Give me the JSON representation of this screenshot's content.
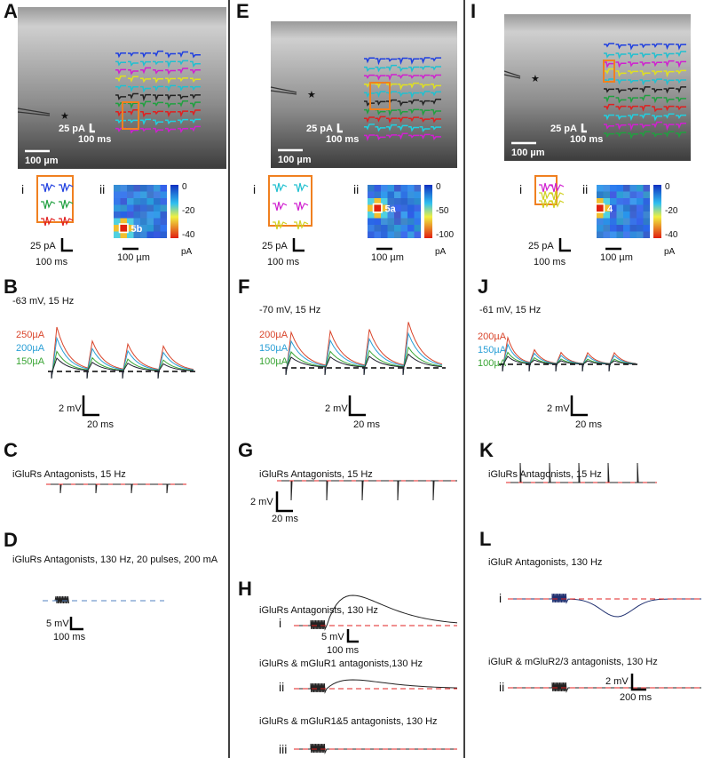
{
  "panel_A": {
    "letter": "A",
    "amp": "25 pA",
    "time": "100 ms",
    "space": "100 µm",
    "inset_i": "i",
    "inset_ii": "ii",
    "colorbar_ticks": [
      "0",
      "-20",
      "-40"
    ],
    "colorbar_unit": "pA",
    "site": "5b",
    "inset_amp": "25 pA",
    "inset_time": "100 ms",
    "inset_space": "100 µm"
  },
  "panel_B": {
    "letter": "B",
    "condition": "-63 mV, 15 Hz",
    "legend": [
      "250µA",
      "200µA",
      "150µA"
    ],
    "amp": "2 mV",
    "time": "20 ms"
  },
  "panel_C": {
    "letter": "C",
    "condition": "iGluRs Antagonists, 15 Hz"
  },
  "panel_D": {
    "letter": "D",
    "condition": "iGluRs Antagonists, 130 Hz, 20 pulses, 200 mA",
    "amp": "5 mV",
    "time": "100 ms"
  },
  "panel_E": {
    "letter": "E",
    "amp": "25 pA",
    "time": "100 ms",
    "space": "100 µm",
    "inset_i": "i",
    "inset_ii": "ii",
    "colorbar_ticks": [
      "0",
      "-50",
      "-100"
    ],
    "colorbar_unit": "pA",
    "site": "5a",
    "inset_amp": "25 pA",
    "inset_time": "100 ms",
    "inset_space": "100 µm"
  },
  "panel_F": {
    "letter": "F",
    "condition": "-70 mV, 15 Hz",
    "legend": [
      "200µA",
      "150µA",
      "100µA"
    ],
    "amp": "2 mV",
    "time": "20 ms"
  },
  "panel_G": {
    "letter": "G",
    "condition": "iGluRs Antagonists, 15 Hz",
    "amp": "2 mV",
    "time": "20 ms"
  },
  "panel_H": {
    "letter": "H",
    "traces": [
      {
        "condition": "iGluRs Antagonists, 130 Hz",
        "label": "i"
      },
      {
        "condition": "iGluRs & mGluR1 antagonists,130 Hz",
        "label": "ii"
      },
      {
        "condition": "iGluRs & mGluR1&5 antagonists, 130 Hz",
        "label": "iii"
      }
    ],
    "amp": "5 mV",
    "time": "100 ms"
  },
  "panel_I": {
    "letter": "I",
    "amp": "25 pA",
    "time": "100 ms",
    "space": "100 µm",
    "inset_i": "i",
    "inset_ii": "ii",
    "colorbar_ticks": [
      "0",
      "-20",
      "-40"
    ],
    "colorbar_unit": "pA",
    "site": "4",
    "inset_amp": "25 pA",
    "inset_time": "100 ms",
    "inset_space": "100 µm"
  },
  "panel_J": {
    "letter": "J",
    "condition": "-61 mV, 15 Hz",
    "legend": [
      "200µA",
      "150µA",
      "100µA"
    ],
    "amp": "2 mV",
    "time": "20 ms"
  },
  "panel_K": {
    "letter": "K",
    "condition": "iGluRs Antagonists, 15 Hz"
  },
  "panel_L": {
    "letter": "L",
    "traces": [
      {
        "condition": "iGluR Antagonists, 130 Hz",
        "label": "i"
      },
      {
        "condition": "iGluR & mGluR2/3 antagonists, 130 Hz",
        "label": "ii"
      }
    ],
    "amp": "2 mV",
    "time": "200 ms"
  }
}
